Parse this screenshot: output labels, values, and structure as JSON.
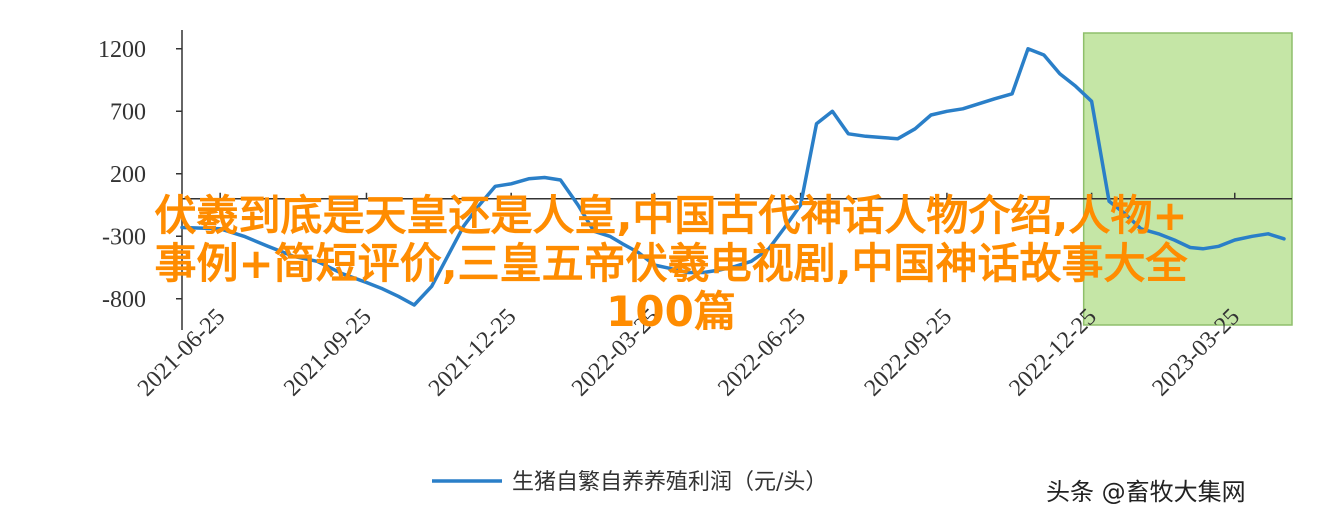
{
  "chart_data": {
    "type": "line",
    "x": [
      "2021-06-01",
      "2021-06-25",
      "2021-07-10",
      "2021-07-25",
      "2021-08-10",
      "2021-08-25",
      "2021-09-10",
      "2021-09-25",
      "2021-10-05",
      "2021-10-15",
      "2021-10-25",
      "2021-11-05",
      "2021-11-15",
      "2021-11-25",
      "2021-12-05",
      "2021-12-15",
      "2021-12-25",
      "2022-01-05",
      "2022-01-15",
      "2022-01-25",
      "2022-02-05",
      "2022-02-15",
      "2022-02-25",
      "2022-03-05",
      "2022-03-15",
      "2022-03-25",
      "2022-04-05",
      "2022-04-15",
      "2022-04-25",
      "2022-05-05",
      "2022-05-15",
      "2022-05-25",
      "2022-06-05",
      "2022-06-15",
      "2022-06-25",
      "2022-07-05",
      "2022-07-15",
      "2022-07-25",
      "2022-08-05",
      "2022-08-15",
      "2022-08-25",
      "2022-09-05",
      "2022-09-15",
      "2022-09-25",
      "2022-10-05",
      "2022-10-15",
      "2022-10-25",
      "2022-11-05",
      "2022-11-15",
      "2022-11-25",
      "2022-12-05",
      "2022-12-15",
      "2022-12-25",
      "2023-01-05",
      "2023-01-15",
      "2023-01-25",
      "2023-02-05",
      "2023-02-15",
      "2023-02-25",
      "2023-03-05",
      "2023-03-15",
      "2023-03-25",
      "2023-04-05",
      "2023-04-15",
      "2023-04-25"
    ],
    "series": [
      {
        "name": "生猪自繁自养养殖利润（元/头）",
        "values": [
          -230,
          -240,
          -300,
          -380,
          -460,
          -500,
          -600,
          -670,
          -720,
          -780,
          -850,
          -700,
          -460,
          -220,
          -50,
          100,
          120,
          160,
          170,
          150,
          -50,
          -260,
          -300,
          -360,
          -430,
          -530,
          -560,
          -590,
          -590,
          -570,
          -540,
          -500,
          -400,
          -230,
          -50,
          600,
          700,
          520,
          500,
          490,
          480,
          560,
          670,
          700,
          720,
          760,
          800,
          840,
          1200,
          1150,
          1000,
          900,
          780,
          -20,
          -120,
          -240,
          -280,
          -330,
          -390,
          -400,
          -380,
          -330,
          -300,
          -280,
          -320
        ]
      }
    ],
    "yticks": [
      1200,
      700,
      200,
      -300,
      -800
    ],
    "ytick_labels": [
      "1200",
      "700",
      "200",
      "-300",
      "-800"
    ],
    "xticks": [
      "2021-06-25",
      "2021-09-25",
      "2021-12-25",
      "2022-03-25",
      "2022-06-25",
      "2022-09-25",
      "2022-12-25",
      "2023-03-25"
    ],
    "ylim": [
      -1050,
      1350
    ],
    "highlight_range": [
      "2022-12-20",
      "2023-04-30"
    ],
    "grid": false,
    "legend": "bottom",
    "title": "",
    "xlabel": "",
    "ylabel": ""
  },
  "legend": {
    "label": "生猪自繁自养养殖利润（元/头）"
  },
  "watermark": {
    "text": "头条 @畜牧大集网"
  },
  "overlay": {
    "line1": "伏羲到底是天皇还是人皇,中国古代神话人物介绍,人物+",
    "line2": "事例+简短评价,三皇五帝伏羲电视剧,中国神话故事大全",
    "line3": "100篇"
  },
  "colors": {
    "line": "#2a7fc8",
    "highlight_fill": "#c5e6a6",
    "highlight_stroke": "#8fbf6b",
    "axis": "#333333",
    "overlay_text": "#ff8c00"
  }
}
